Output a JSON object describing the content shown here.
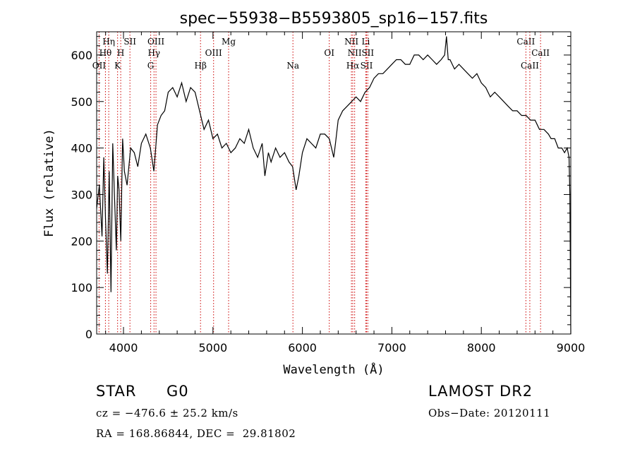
{
  "chart_data": {
    "type": "line",
    "title": "spec−55938−B5593805_sp16−157.fits",
    "xlabel": "Wavelength (Å)",
    "ylabel": "Flux (relative)",
    "xlim": [
      3700,
      9000
    ],
    "ylim": [
      0,
      650
    ],
    "xticks": [
      4000,
      5000,
      6000,
      7000,
      8000,
      9000
    ],
    "yticks": [
      0,
      100,
      200,
      300,
      400,
      500,
      600
    ],
    "grid": false,
    "legend": "none",
    "line_color": "#000000",
    "marker_color": "#cc0000",
    "series": [
      {
        "x": [
          3700,
          3730,
          3760,
          3780,
          3800,
          3820,
          3840,
          3860,
          3880,
          3900,
          3920,
          3935,
          3950,
          3970,
          3990,
          4010,
          4040,
          4080,
          4120,
          4160,
          4200,
          4250,
          4300,
          4340,
          4380,
          4420,
          4460,
          4500,
          4550,
          4600,
          4650,
          4700,
          4750,
          4800,
          4850,
          4900,
          4950,
          5000,
          5050,
          5100,
          5150,
          5200,
          5250,
          5300,
          5350,
          5400,
          5450,
          5500,
          5550,
          5580,
          5620,
          5650,
          5700,
          5750,
          5800,
          5850,
          5890,
          5930,
          5960,
          6000,
          6050,
          6100,
          6150,
          6200,
          6250,
          6300,
          6350,
          6370,
          6400,
          6450,
          6500,
          6550,
          6600,
          6650,
          6700,
          6750,
          6800,
          6850,
          6900,
          6950,
          7000,
          7050,
          7100,
          7150,
          7200,
          7250,
          7300,
          7350,
          7400,
          7450,
          7500,
          7550,
          7590,
          7610,
          7630,
          7650,
          7700,
          7750,
          7800,
          7850,
          7900,
          7950,
          8000,
          8050,
          8100,
          8150,
          8200,
          8250,
          8300,
          8350,
          8400,
          8450,
          8500,
          8550,
          8600,
          8650,
          8700,
          8750,
          8780,
          8820,
          8860,
          8900,
          8930,
          8960,
          8980,
          8990,
          9000
        ],
        "y": [
          270,
          320,
          210,
          380,
          240,
          130,
          350,
          90,
          410,
          290,
          180,
          340,
          310,
          200,
          420,
          350,
          320,
          400,
          390,
          360,
          410,
          430,
          400,
          350,
          450,
          470,
          480,
          520,
          530,
          510,
          540,
          500,
          530,
          520,
          480,
          440,
          460,
          420,
          430,
          400,
          410,
          390,
          400,
          420,
          410,
          440,
          400,
          380,
          410,
          340,
          390,
          370,
          400,
          380,
          390,
          370,
          360,
          310,
          340,
          390,
          420,
          410,
          400,
          430,
          430,
          420,
          380,
          410,
          460,
          480,
          490,
          500,
          510,
          500,
          520,
          530,
          550,
          560,
          560,
          570,
          580,
          590,
          590,
          580,
          580,
          600,
          600,
          590,
          600,
          590,
          580,
          590,
          600,
          640,
          590,
          590,
          570,
          580,
          570,
          560,
          550,
          560,
          540,
          530,
          510,
          520,
          510,
          500,
          490,
          480,
          480,
          470,
          470,
          460,
          460,
          440,
          440,
          430,
          420,
          420,
          400,
          400,
          390,
          400,
          380,
          300,
          0
        ]
      }
    ],
    "line_markers": [
      {
        "label": "OII",
        "x": 3727,
        "row": 3
      },
      {
        "label": "Hθ",
        "x": 3798,
        "row": 2
      },
      {
        "label": "Hη",
        "x": 3835,
        "row": 1
      },
      {
        "label": "K",
        "x": 3934,
        "row": 3
      },
      {
        "label": "H",
        "x": 3969,
        "row": 2
      },
      {
        "label": "SII",
        "x": 4072,
        "row": 1
      },
      {
        "label": "G",
        "x": 4304,
        "row": 3
      },
      {
        "label": "Hγ",
        "x": 4341,
        "row": 2
      },
      {
        "label": "OIII",
        "x": 4363,
        "row": 1
      },
      {
        "label": "Hβ",
        "x": 4861,
        "row": 3
      },
      {
        "label": "OIII",
        "x": 5007,
        "row": 2
      },
      {
        "label": "Mg",
        "x": 5175,
        "row": 1
      },
      {
        "label": "Na",
        "x": 5894,
        "row": 3
      },
      {
        "label": "OI",
        "x": 6300,
        "row": 2
      },
      {
        "label": "NII",
        "x": 6548,
        "row": 1
      },
      {
        "label": "Hα",
        "x": 6563,
        "row": 3
      },
      {
        "label": "NII",
        "x": 6584,
        "row": 2
      },
      {
        "label": "Li",
        "x": 6708,
        "row": 1
      },
      {
        "label": "SII",
        "x": 6717,
        "row": 3
      },
      {
        "label": "SII",
        "x": 6731,
        "row": 2
      },
      {
        "label": "CaII",
        "x": 8498,
        "row": 1
      },
      {
        "label": "CaII",
        "x": 8542,
        "row": 3
      },
      {
        "label": "CaII",
        "x": 8662,
        "row": 2
      }
    ]
  },
  "info": {
    "object_class": "STAR",
    "subclass": "G0",
    "survey": "LAMOST DR2",
    "cz": "cz = −476.6 ± 25.2 km/s",
    "obs_date": "Obs−Date: 20120111",
    "coords": "RA = 168.86844, DEC =  29.81802"
  }
}
